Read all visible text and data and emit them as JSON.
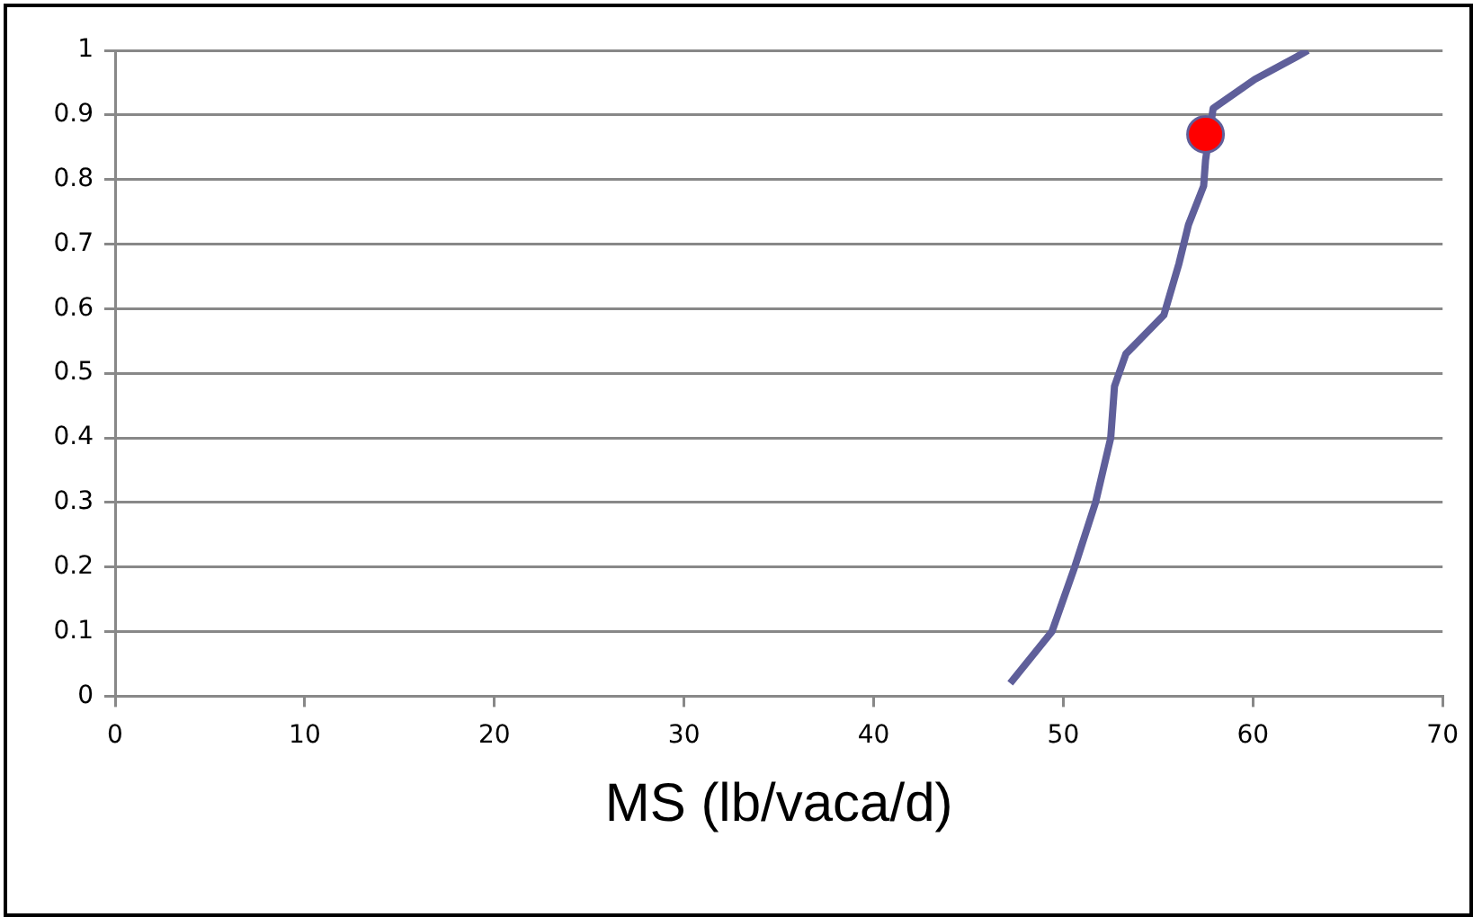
{
  "chart_data": {
    "type": "line",
    "xlabel": "MS (lb/vaca/d)",
    "xlim": [
      0,
      70
    ],
    "xticks": [
      0,
      10,
      20,
      30,
      40,
      50,
      60,
      70
    ],
    "ylim": [
      0,
      1
    ],
    "yticks": [
      0,
      0.1,
      0.2,
      0.3,
      0.4,
      0.5,
      0.6,
      0.7,
      0.8,
      0.9,
      1
    ],
    "grid": "y",
    "legend": false,
    "series": [
      {
        "color": "#5f5f9a",
        "marker": "none",
        "x": [
          47.2,
          49.4,
          50.6,
          51.7,
          52.5,
          52.7,
          53.3,
          55.3,
          56.1,
          56.6,
          57.4,
          57.5,
          57.9,
          60.1,
          62.3,
          62.9
        ],
        "values": [
          0.02,
          0.1,
          0.2,
          0.3,
          0.4,
          0.48,
          0.53,
          0.59,
          0.67,
          0.73,
          0.79,
          0.83,
          0.91,
          0.955,
          0.99,
          1.0
        ]
      },
      {
        "type": "scatter",
        "color": "#ff0000",
        "marker": "circle",
        "x": [
          57.5
        ],
        "values": [
          0.87
        ]
      }
    ]
  }
}
